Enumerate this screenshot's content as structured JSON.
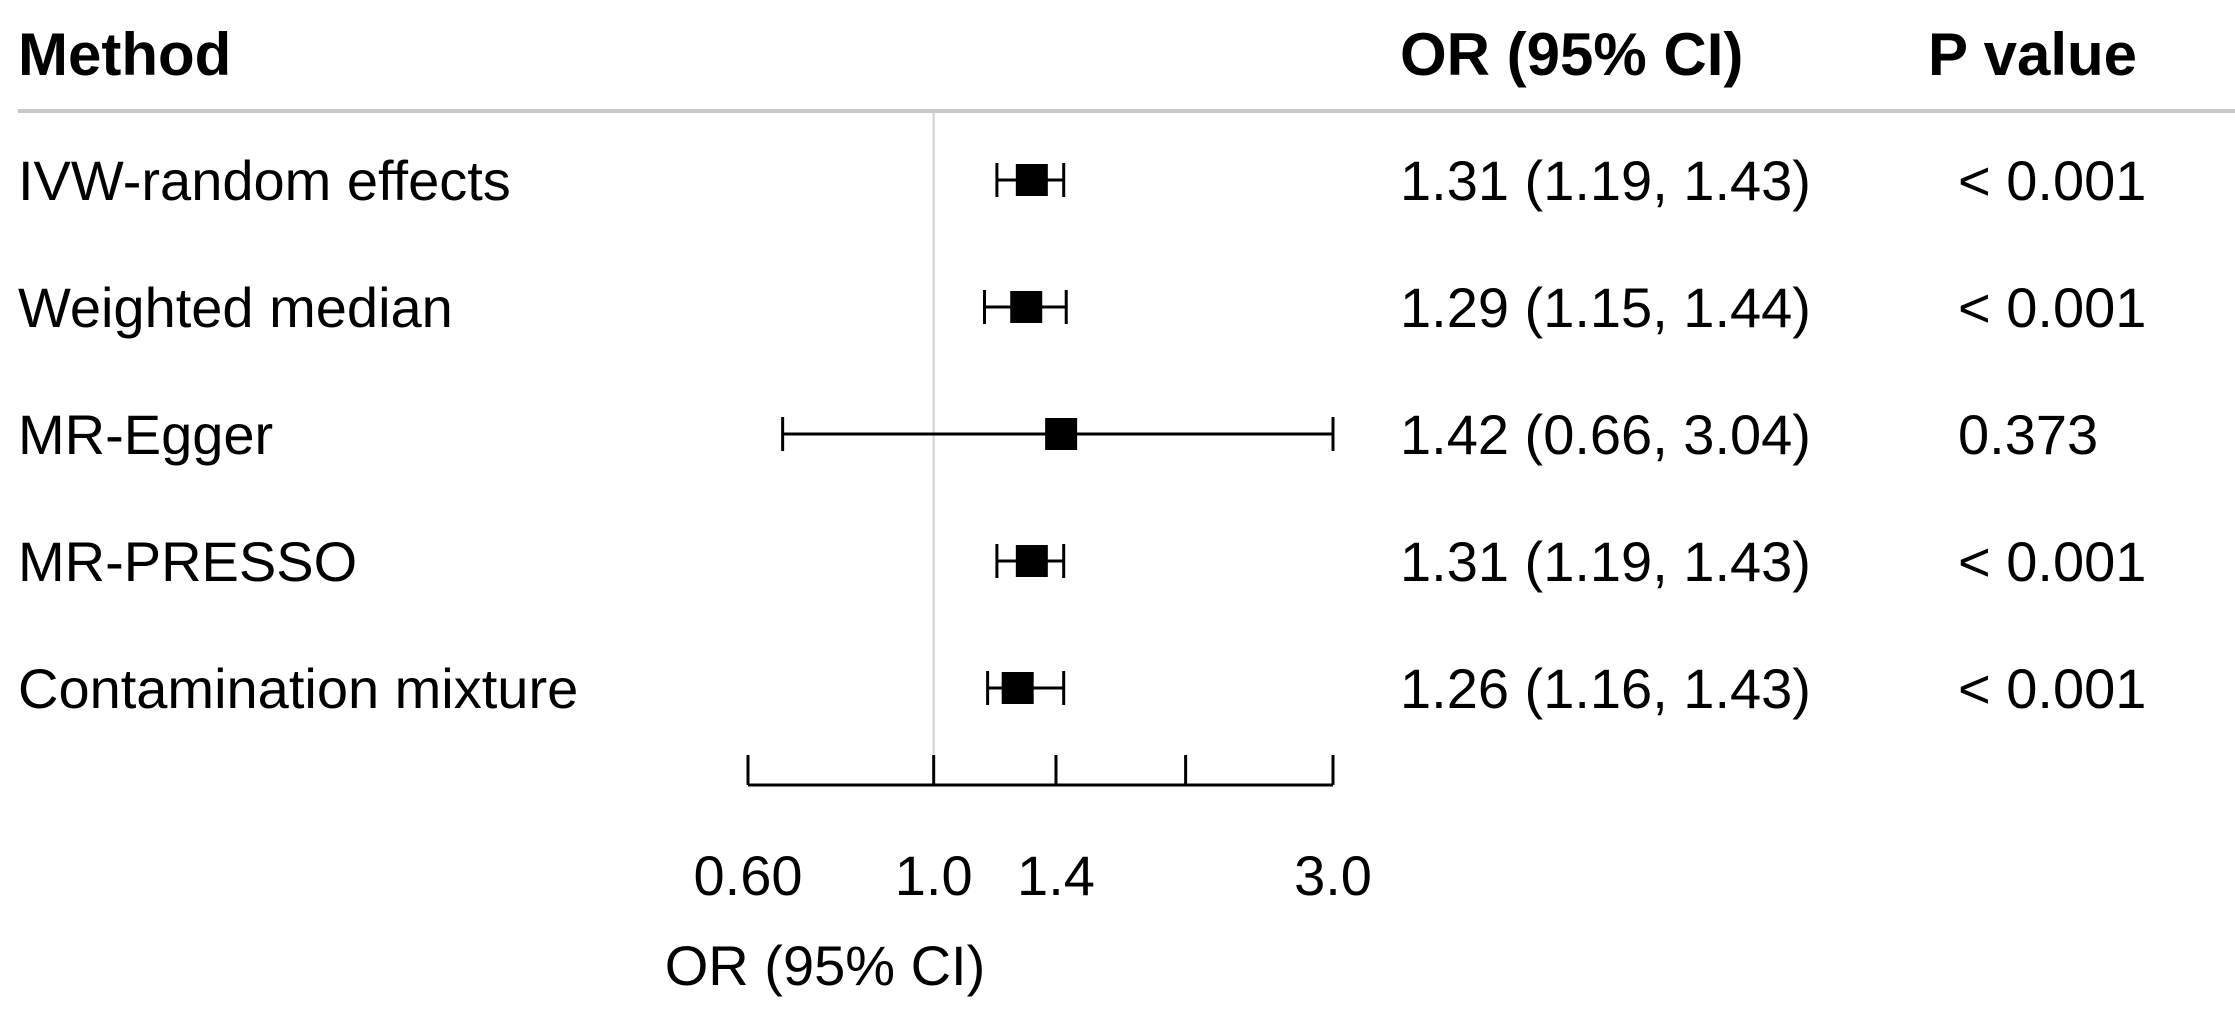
{
  "headers": {
    "method": "Method",
    "or": "OR (95% CI)",
    "p": "P value"
  },
  "chart_data": {
    "type": "forest",
    "x_scale": "log",
    "xlim": [
      0.6,
      3.0
    ],
    "reference_line": 1.0,
    "xlabel": "OR (95% CI)",
    "tick_values": [
      0.6,
      1.0,
      1.4,
      2.0,
      3.0
    ],
    "tick_labels": [
      "0.60",
      "1.0",
      "1.4",
      "",
      "3.0"
    ],
    "rows": [
      {
        "method": "IVW-random effects",
        "or": 1.31,
        "lower": 1.19,
        "upper": 1.43,
        "or_text": "1.31 (1.19, 1.43)",
        "p_text": "< 0.001"
      },
      {
        "method": "Weighted median",
        "or": 1.29,
        "lower": 1.15,
        "upper": 1.44,
        "or_text": "1.29 (1.15, 1.44)",
        "p_text": "< 0.001"
      },
      {
        "method": "MR-Egger",
        "or": 1.42,
        "lower": 0.66,
        "upper": 3.04,
        "or_text": "1.42 (0.66, 3.04)",
        "p_text": "0.373"
      },
      {
        "method": "MR-PRESSO",
        "or": 1.31,
        "lower": 1.19,
        "upper": 1.43,
        "or_text": "1.31 (1.19, 1.43)",
        "p_text": "< 0.001"
      },
      {
        "method": "Contamination mixture",
        "or": 1.26,
        "lower": 1.16,
        "upper": 1.43,
        "or_text": "1.26 (1.16, 1.43)",
        "p_text": "< 0.001"
      }
    ],
    "colors": {
      "marker": "#000000",
      "ci_line": "#000000",
      "reference_line": "#d0d0d0",
      "header_rule": "#c8c8c8"
    }
  }
}
